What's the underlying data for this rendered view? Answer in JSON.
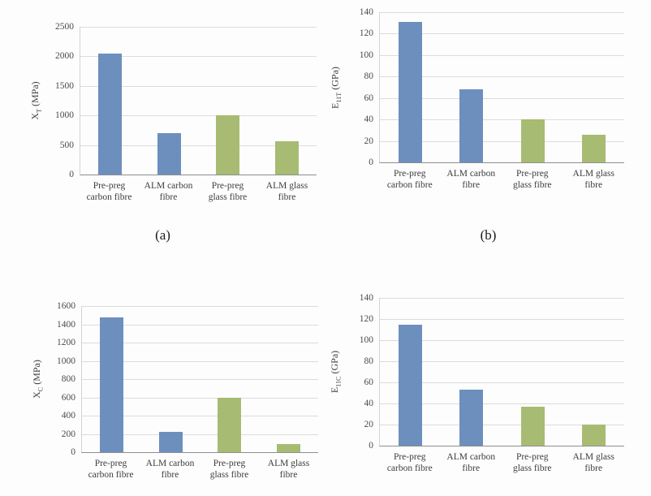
{
  "page": {
    "background": "#fdfdfd",
    "description": "Four bar charts comparing mechanical properties of pre-preg and ALM carbon/glass fibre composites"
  },
  "colors": {
    "carbon_blue": "#6d8fbd",
    "glass_green": "#a8bb72",
    "gridline": "#dcdcdc",
    "axis_line": "#8f8f8f",
    "tick_text": "#4a4a4a"
  },
  "chart_data": [
    {
      "id": "a",
      "type": "bar",
      "title": "",
      "ylabel": {
        "base": "X",
        "sub": "T",
        "unit": "(MPa)"
      },
      "ylim": [
        0,
        2500
      ],
      "yticks": [
        0,
        500,
        1000,
        1500,
        2000,
        2500
      ],
      "grid": true,
      "legend": "none",
      "categories": [
        [
          "Pre-preg",
          "carbon fibre"
        ],
        [
          "ALM carbon",
          "fibre"
        ],
        [
          "Pre-preg",
          "glass fibre"
        ],
        [
          "ALM glass",
          "fibre"
        ]
      ],
      "values": [
        2050,
        700,
        1000,
        570
      ],
      "bar_colors": [
        "#6d8fbd",
        "#6d8fbd",
        "#a8bb72",
        "#a8bb72"
      ],
      "caption": "(a)"
    },
    {
      "id": "b",
      "type": "bar",
      "title": "",
      "ylabel": {
        "base": "E",
        "sub": "11T",
        "unit": "(GPa)"
      },
      "ylim": [
        0,
        140
      ],
      "yticks": [
        0,
        20,
        40,
        60,
        80,
        100,
        120,
        140
      ],
      "grid": true,
      "legend": "none",
      "categories": [
        [
          "Pre-preg",
          "carbon fibre"
        ],
        [
          "ALM carbon",
          "fibre"
        ],
        [
          "Pre-preg",
          "glass fibre"
        ],
        [
          "ALM glass",
          "fibre"
        ]
      ],
      "values": [
        131,
        68,
        40,
        26
      ],
      "bar_colors": [
        "#6d8fbd",
        "#6d8fbd",
        "#a8bb72",
        "#a8bb72"
      ],
      "caption": "(b)"
    },
    {
      "id": "c",
      "type": "bar",
      "title": "",
      "ylabel": {
        "base": "X",
        "sub": "C",
        "unit": "(MPa)"
      },
      "ylim": [
        0,
        1600
      ],
      "yticks": [
        0,
        200,
        400,
        600,
        800,
        1000,
        1200,
        1400,
        1600
      ],
      "grid": true,
      "legend": "none",
      "categories": [
        [
          "Pre-preg",
          "carbon fibre"
        ],
        [
          "ALM carbon",
          "fibre"
        ],
        [
          "Pre-preg",
          "glass fibre"
        ],
        [
          "ALM glass",
          "fibre"
        ]
      ],
      "values": [
        1480,
        220,
        600,
        90
      ],
      "bar_colors": [
        "#6d8fbd",
        "#6d8fbd",
        "#a8bb72",
        "#a8bb72"
      ],
      "caption": ""
    },
    {
      "id": "d",
      "type": "bar",
      "title": "",
      "ylabel": {
        "base": "E",
        "sub": "11C",
        "unit": "(GPa)"
      },
      "ylim": [
        0,
        140
      ],
      "yticks": [
        0,
        20,
        40,
        60,
        80,
        100,
        120,
        140
      ],
      "grid": true,
      "legend": "none",
      "categories": [
        [
          "Pre-preg",
          "carbon fibre"
        ],
        [
          "ALM carbon",
          "fibre"
        ],
        [
          "Pre-preg",
          "glass fibre"
        ],
        [
          "ALM glass",
          "fibre"
        ]
      ],
      "values": [
        115,
        53,
        37,
        20
      ],
      "bar_colors": [
        "#6d8fbd",
        "#6d8fbd",
        "#a8bb72",
        "#a8bb72"
      ],
      "caption": ""
    }
  ]
}
